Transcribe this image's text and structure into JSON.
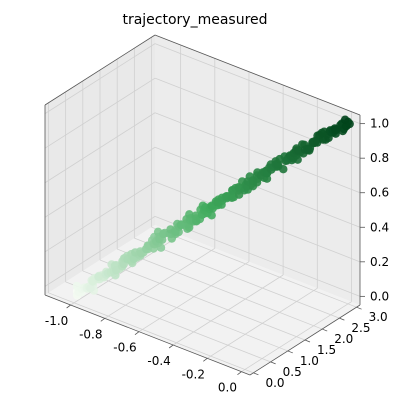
{
  "chart_data": {
    "type": "scatter",
    "projection": "3d",
    "title": "trajectory_measured",
    "colormap": "Greens",
    "colors": {
      "low": "#f7fcf5",
      "mid": "#41ab5d",
      "high": "#00441b"
    },
    "xlabel": "",
    "ylabel": "",
    "zlabel": "",
    "xlim": [
      -1.15,
      0.05
    ],
    "ylim": [
      -0.1,
      3.1
    ],
    "zlim": [
      -0.05,
      1.05
    ],
    "xticks": [
      "-1.0",
      "-0.8",
      "-0.6",
      "-0.4",
      "-0.2",
      "0.0"
    ],
    "yticks": [
      "0.0",
      "0.5",
      "1.0",
      "1.5",
      "2.0",
      "2.5",
      "3.0"
    ],
    "zticks": [
      "0.0",
      "0.2",
      "0.4",
      "0.6",
      "0.8",
      "1.0"
    ],
    "series": [
      {
        "name": "trajectory_measured",
        "description": "noisy trajectory progressing from x=-1.0,y=0.0,z=0.0 to x=0.0,y=3.0,z=1.0",
        "start": {
          "x": -1.0,
          "y": 0.0,
          "z": 0.0
        },
        "end": {
          "x": 0.0,
          "y": 3.0,
          "z": 1.0
        },
        "n_points": 260,
        "noise": 0.035
      }
    ]
  }
}
